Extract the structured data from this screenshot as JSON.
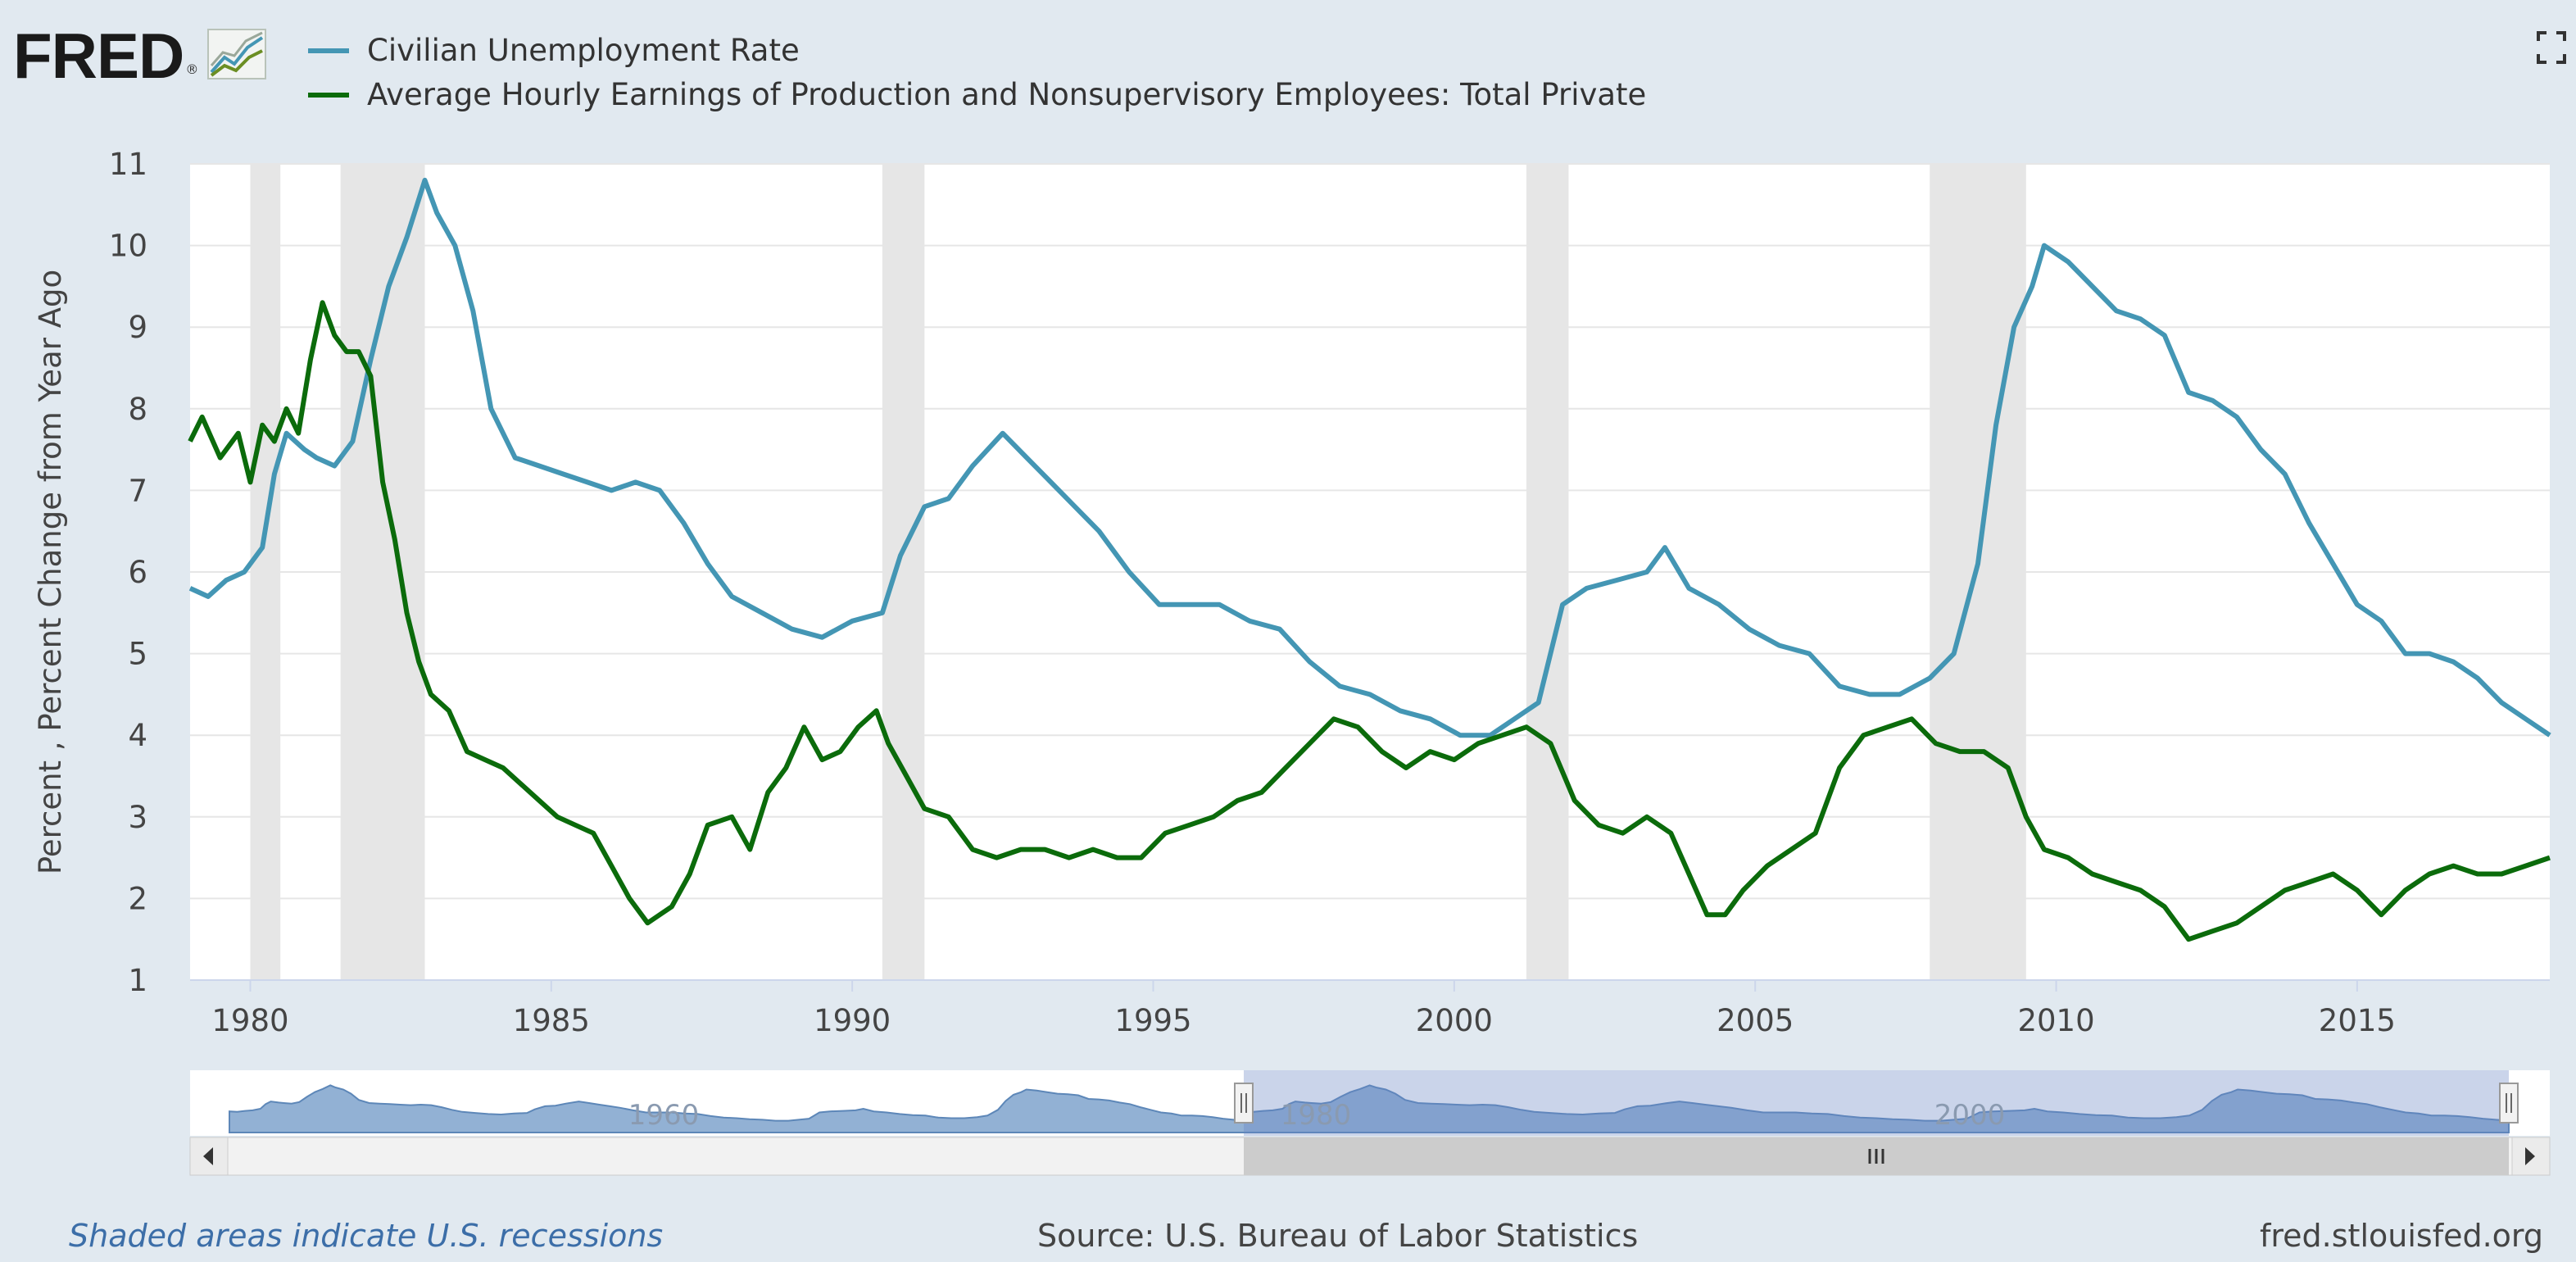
{
  "brand": {
    "logo_text": "FRED",
    "logo_mark": "®",
    "logo_icon": "line-chart-icon"
  },
  "colors": {
    "unemployment": "#4496b4",
    "earnings": "#0b6b0b",
    "recession": "#e6e6e6",
    "nav_fill": "#7fa3cc"
  },
  "chart_data": {
    "type": "line",
    "title": "",
    "ylabel": "Percent , Percent Change from Year Ago",
    "xlabel": "",
    "xlim": [
      1979.0,
      2018.2
    ],
    "ylim": [
      1,
      11
    ],
    "y_ticks": [
      "1",
      "2",
      "3",
      "4",
      "5",
      "6",
      "7",
      "8",
      "9",
      "10",
      "11"
    ],
    "x_ticks": [
      "1980",
      "1985",
      "1990",
      "1995",
      "2000",
      "2005",
      "2010",
      "2015"
    ],
    "grid": true,
    "legend_position": "top-left",
    "recessions": [
      [
        1980.0,
        1980.5
      ],
      [
        1981.5,
        1982.9
      ],
      [
        1990.5,
        1991.2
      ],
      [
        2001.2,
        2001.9
      ],
      [
        2007.9,
        2009.5
      ]
    ],
    "series": [
      {
        "name": "Civilian Unemployment Rate",
        "x": [
          1979.0,
          1979.3,
          1979.6,
          1979.9,
          1980.2,
          1980.4,
          1980.6,
          1980.9,
          1981.1,
          1981.4,
          1981.7,
          1982.0,
          1982.3,
          1982.6,
          1982.9,
          1983.1,
          1983.4,
          1983.7,
          1984.0,
          1984.4,
          1984.8,
          1985.2,
          1985.6,
          1986.0,
          1986.4,
          1986.8,
          1987.2,
          1987.6,
          1988.0,
          1988.5,
          1989.0,
          1989.5,
          1990.0,
          1990.5,
          1990.8,
          1991.2,
          1991.6,
          1992.0,
          1992.5,
          1992.9,
          1993.3,
          1993.7,
          1994.1,
          1994.6,
          1995.1,
          1995.6,
          1996.1,
          1996.6,
          1997.1,
          1997.6,
          1998.1,
          1998.6,
          1999.1,
          1999.6,
          2000.1,
          2000.6,
          2001.0,
          2001.4,
          2001.8,
          2002.2,
          2002.7,
          2003.2,
          2003.5,
          2003.9,
          2004.4,
          2004.9,
          2005.4,
          2005.9,
          2006.4,
          2006.9,
          2007.4,
          2007.9,
          2008.3,
          2008.7,
          2009.0,
          2009.3,
          2009.6,
          2009.8,
          2010.2,
          2010.6,
          2011.0,
          2011.4,
          2011.8,
          2012.2,
          2012.6,
          2013.0,
          2013.4,
          2013.8,
          2014.2,
          2014.6,
          2015.0,
          2015.4,
          2015.8,
          2016.2,
          2016.6,
          2017.0,
          2017.4,
          2017.8,
          2018.2
        ],
        "values": [
          5.8,
          5.7,
          5.9,
          6.0,
          6.3,
          7.2,
          7.7,
          7.5,
          7.4,
          7.3,
          7.6,
          8.6,
          9.5,
          10.1,
          10.8,
          10.4,
          10.0,
          9.2,
          8.0,
          7.4,
          7.3,
          7.2,
          7.1,
          7.0,
          7.1,
          7.0,
          6.6,
          6.1,
          5.7,
          5.5,
          5.3,
          5.2,
          5.4,
          5.5,
          6.2,
          6.8,
          6.9,
          7.3,
          7.7,
          7.4,
          7.1,
          6.8,
          6.5,
          6.0,
          5.6,
          5.6,
          5.6,
          5.4,
          5.3,
          4.9,
          4.6,
          4.5,
          4.3,
          4.2,
          4.0,
          4.0,
          4.2,
          4.4,
          5.6,
          5.8,
          5.9,
          6.0,
          6.3,
          5.8,
          5.6,
          5.3,
          5.1,
          5.0,
          4.6,
          4.5,
          4.5,
          4.7,
          5.0,
          6.1,
          7.8,
          9.0,
          9.5,
          10.0,
          9.8,
          9.5,
          9.2,
          9.1,
          8.9,
          8.2,
          8.1,
          7.9,
          7.5,
          7.2,
          6.6,
          6.1,
          5.6,
          5.4,
          5.0,
          5.0,
          4.9,
          4.7,
          4.4,
          4.2,
          4.0
        ]
      },
      {
        "name": "Average Hourly Earnings of Production and Nonsupervisory Employees: Total Private",
        "x": [
          1979.0,
          1979.2,
          1979.5,
          1979.8,
          1980.0,
          1980.2,
          1980.4,
          1980.6,
          1980.8,
          1981.0,
          1981.2,
          1981.4,
          1981.6,
          1981.8,
          1982.0,
          1982.2,
          1982.4,
          1982.6,
          1982.8,
          1983.0,
          1983.3,
          1983.6,
          1983.9,
          1984.2,
          1984.5,
          1984.8,
          1985.1,
          1985.4,
          1985.7,
          1986.0,
          1986.3,
          1986.6,
          1986.8,
          1987.0,
          1987.3,
          1987.6,
          1988.0,
          1988.3,
          1988.6,
          1988.9,
          1989.2,
          1989.5,
          1989.8,
          1990.1,
          1990.4,
          1990.6,
          1990.9,
          1991.2,
          1991.6,
          1992.0,
          1992.4,
          1992.8,
          1993.2,
          1993.6,
          1994.0,
          1994.4,
          1994.8,
          1995.2,
          1995.6,
          1996.0,
          1996.4,
          1996.8,
          1997.2,
          1997.6,
          1998.0,
          1998.4,
          1998.8,
          1999.2,
          1999.6,
          2000.0,
          2000.4,
          2000.8,
          2001.2,
          2001.6,
          2002.0,
          2002.4,
          2002.8,
          2003.2,
          2003.6,
          2003.9,
          2004.2,
          2004.5,
          2004.8,
          2005.2,
          2005.6,
          2006.0,
          2006.4,
          2006.8,
          2007.2,
          2007.6,
          2008.0,
          2008.4,
          2008.8,
          2009.2,
          2009.5,
          2009.8,
          2010.2,
          2010.6,
          2011.0,
          2011.4,
          2011.8,
          2012.2,
          2012.6,
          2013.0,
          2013.4,
          2013.8,
          2014.2,
          2014.6,
          2015.0,
          2015.4,
          2015.8,
          2016.2,
          2016.6,
          2017.0,
          2017.4,
          2017.8,
          2018.2
        ],
        "values": [
          7.6,
          7.9,
          7.4,
          7.7,
          7.1,
          7.8,
          7.6,
          8.0,
          7.7,
          8.6,
          9.3,
          8.9,
          8.7,
          8.7,
          8.4,
          7.1,
          6.4,
          5.5,
          4.9,
          4.5,
          4.3,
          3.8,
          3.7,
          3.6,
          3.4,
          3.2,
          3.0,
          2.9,
          2.8,
          2.4,
          2.0,
          1.7,
          1.8,
          1.9,
          2.3,
          2.9,
          3.0,
          2.6,
          3.3,
          3.6,
          4.1,
          3.7,
          3.8,
          4.1,
          4.3,
          3.9,
          3.5,
          3.1,
          3.0,
          2.6,
          2.5,
          2.6,
          2.6,
          2.5,
          2.6,
          2.5,
          2.5,
          2.8,
          2.9,
          3.0,
          3.2,
          3.3,
          3.6,
          3.9,
          4.2,
          4.1,
          3.8,
          3.6,
          3.8,
          3.7,
          3.9,
          4.0,
          4.1,
          3.9,
          3.2,
          2.9,
          2.8,
          3.0,
          2.8,
          2.3,
          1.8,
          1.8,
          2.1,
          2.4,
          2.6,
          2.8,
          3.6,
          4.0,
          4.1,
          4.2,
          3.9,
          3.8,
          3.8,
          3.6,
          3.0,
          2.6,
          2.5,
          2.3,
          2.2,
          2.1,
          1.9,
          1.5,
          1.6,
          1.7,
          1.9,
          2.1,
          2.2,
          2.3,
          2.1,
          1.8,
          2.1,
          2.3,
          2.4,
          2.3,
          2.3,
          2.4,
          2.5
        ]
      }
    ]
  },
  "navigator": {
    "labels": [
      "1960",
      "1980",
      "2000"
    ],
    "left_button_icon": "arrow-left-icon",
    "right_button_icon": "arrow-right-icon",
    "grip_icon": "grip-icon",
    "range_start_fraction": 0.5,
    "range_end_fraction": 1.0
  },
  "footer": {
    "note": "Shaded areas indicate U.S. recessions",
    "source": "Source: U.S. Bureau of Labor Statistics",
    "url": "fred.stlouisfed.org"
  },
  "controls": {
    "fullscreen_icon": "fullscreen-icon"
  }
}
